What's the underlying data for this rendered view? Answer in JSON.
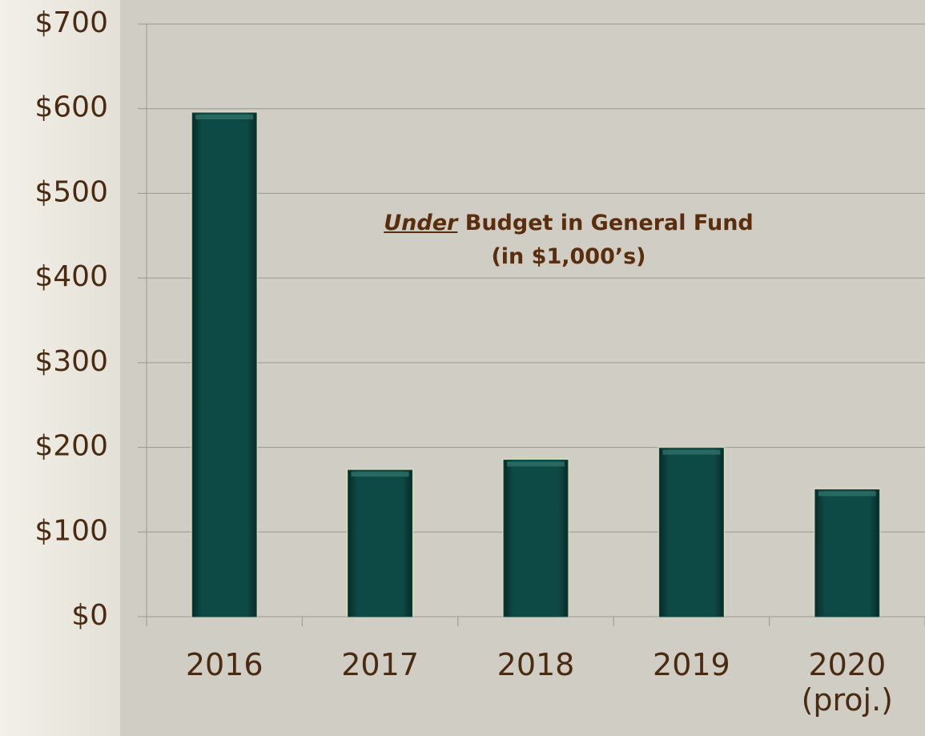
{
  "chart_data": {
    "type": "bar",
    "title_emphasis": "Under",
    "title": "Budget in General Fund",
    "subtitle": "(in $1,000’s)",
    "categories": [
      "2016",
      "2017",
      "2018",
      "2019",
      "2020 (proj.)"
    ],
    "values": [
      595,
      173,
      185,
      199,
      150
    ],
    "color": "#0e4a45",
    "ylim": [
      0,
      700
    ],
    "yticks": [
      {
        "value": 0,
        "label": "$0"
      },
      {
        "value": 100,
        "label": "$100"
      },
      {
        "value": 200,
        "label": "$200"
      },
      {
        "value": 300,
        "label": "$300"
      },
      {
        "value": 400,
        "label": "$400"
      },
      {
        "value": 500,
        "label": "$500"
      },
      {
        "value": 600,
        "label": "$600"
      },
      {
        "value": 700,
        "label": "$700"
      }
    ],
    "grid": true
  }
}
